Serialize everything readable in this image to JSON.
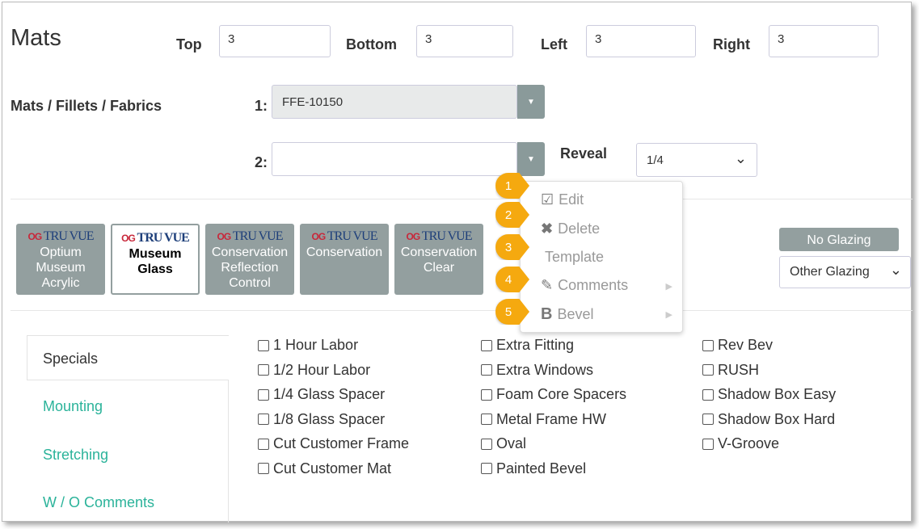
{
  "title": "Mats",
  "margins": {
    "top_label": "Top",
    "top": "3",
    "bottom_label": "Bottom",
    "bottom": "3",
    "left_label": "Left",
    "left": "3",
    "right_label": "Right",
    "right": "3"
  },
  "mats": {
    "label": "Mats / Fillets / Fabrics",
    "row1_label": "1:",
    "row1_value": "FFE-10150",
    "row2_label": "2:",
    "row2_value": "",
    "reveal_label": "Reveal",
    "reveal_value": "1/4"
  },
  "glazing": {
    "brand": "TRU VUE",
    "buttons": [
      "Optium Museum Acrylic",
      "Museum Glass",
      "Conservation Reflection Control",
      "Conservation",
      "Conservation Clear"
    ],
    "selected": "Museum Glass",
    "no_glazing": "No Glazing",
    "other_glazing": "Other Glazing"
  },
  "tabs": [
    "Specials",
    "Mounting",
    "Stretching",
    "W / O Comments"
  ],
  "active_tab": "Specials",
  "specials": [
    [
      "1 Hour Labor",
      "1/2 Hour Labor",
      "1/4 Glass Spacer",
      "1/8 Glass Spacer",
      "Cut Customer Frame",
      "Cut Customer Mat"
    ],
    [
      "Extra Fitting",
      "Extra Windows",
      "Foam Core Spacers",
      "Metal Frame HW",
      "Oval",
      "Painted Bevel"
    ],
    [
      "Rev Bev",
      "RUSH",
      "Shadow Box Easy",
      "Shadow Box Hard",
      "V-Groove"
    ]
  ],
  "context_menu": [
    {
      "label": "Edit",
      "icon": "edit-icon"
    },
    {
      "label": "Delete",
      "icon": "x-icon"
    },
    {
      "label": "Template",
      "icon": ""
    },
    {
      "label": "Comments",
      "icon": "pencil-icon"
    },
    {
      "label": "Bevel",
      "icon": "bold-b-icon"
    }
  ],
  "callouts": [
    "1",
    "2",
    "3",
    "4",
    "5"
  ],
  "colors": {
    "accent": "#2bb39a",
    "callout": "#f5a90f",
    "button": "#939f9f"
  }
}
